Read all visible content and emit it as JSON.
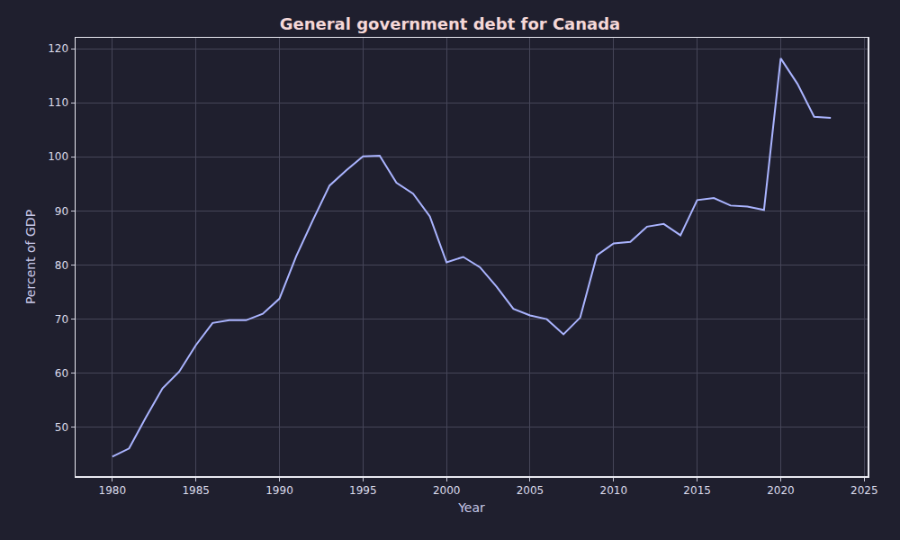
{
  "chart_data": {
    "type": "line",
    "title": "General government debt for Canada",
    "x_label": "Year",
    "y_label": "Percent of GDP",
    "x": [
      1980,
      1981,
      1982,
      1983,
      1984,
      1985,
      1986,
      1987,
      1988,
      1989,
      1990,
      1991,
      1992,
      1993,
      1994,
      1995,
      1996,
      1997,
      1998,
      1999,
      2000,
      2001,
      2002,
      2003,
      2004,
      2005,
      2006,
      2007,
      2008,
      2009,
      2010,
      2011,
      2012,
      2013,
      2014,
      2015,
      2016,
      2017,
      2018,
      2019,
      2020,
      2021,
      2022,
      2023
    ],
    "values": [
      44.6,
      46.1,
      51.8,
      57.2,
      60.3,
      65.2,
      69.3,
      69.8,
      69.8,
      71.0,
      73.8,
      81.6,
      88.3,
      94.7,
      97.5,
      100.1,
      100.2,
      95.2,
      93.2,
      89.0,
      80.5,
      81.5,
      79.6,
      76.0,
      71.9,
      70.7,
      70.0,
      67.2,
      70.3,
      81.8,
      84.0,
      84.3,
      87.1,
      87.6,
      85.5,
      92.0,
      92.4,
      91.0,
      90.8,
      90.2,
      118.2,
      113.5,
      107.4,
      107.2
    ],
    "color": "#aab4ff",
    "xlim": [
      1977.8,
      2025.2
    ],
    "xticks": [
      1980,
      1985,
      1990,
      1995,
      2000,
      2005,
      2010,
      2015,
      2020,
      2025
    ],
    "ylim": [
      41,
      122
    ],
    "yticks": [
      50,
      60,
      70,
      80,
      90,
      100,
      110,
      120
    ],
    "grid": true
  }
}
